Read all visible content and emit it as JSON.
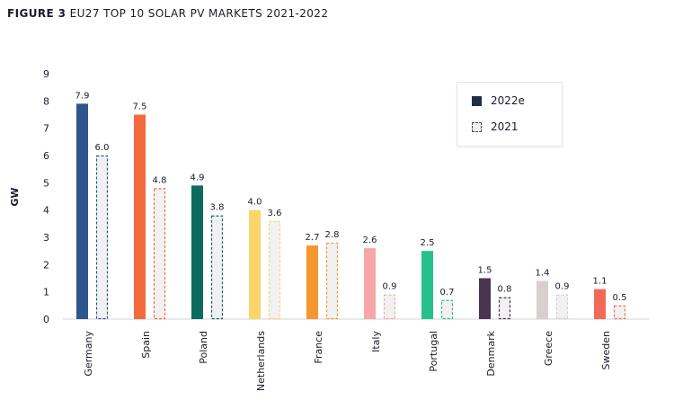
{
  "title": {
    "prefix": "FIGURE 3",
    "text": "EU27 TOP 10 SOLAR PV MARKETS 2021-2022"
  },
  "colors": {
    "Germany": "#2e558d",
    "Spain": "#f26a3d",
    "Poland": "#0d6b5e",
    "Netherlands": "#fbd56a",
    "France": "#f5972f",
    "Italy": "#f6a7a7",
    "Portugal": "#27c08a",
    "Denmark": "#4a3550",
    "Greece": "#d8cfcf",
    "Sweden": "#f26a55",
    "legend_2022e": "#1f2d4a"
  },
  "chart_data": {
    "type": "bar",
    "title": "EU27 TOP 10 SOLAR PV MARKETS 2021-2022",
    "xlabel": "",
    "ylabel": "GW",
    "ylim": [
      0,
      9
    ],
    "yticks": [
      0,
      1,
      2,
      3,
      4,
      5,
      6,
      7,
      8,
      9
    ],
    "categories": [
      "Germany",
      "Spain",
      "Poland",
      "Netherlands",
      "France",
      "Italy",
      "Portugal",
      "Denmark",
      "Greece",
      "Sweden"
    ],
    "series": [
      {
        "name": "2022e",
        "values": [
          7.9,
          7.5,
          4.9,
          4.0,
          2.7,
          2.6,
          2.5,
          1.5,
          1.4,
          1.1
        ],
        "labels": [
          "7.9",
          "7.5",
          "4.9",
          "4.0",
          "2.7",
          "2.6",
          "2.5",
          "1.5",
          "1.4",
          "1.1"
        ]
      },
      {
        "name": "2021",
        "values": [
          6.0,
          4.8,
          3.8,
          3.6,
          2.8,
          0.9,
          0.7,
          0.8,
          0.9,
          0.5
        ],
        "labels": [
          "6.0",
          "4.8",
          "3.8",
          "3.6",
          "2.8",
          "0.9",
          "0.7",
          "0.8",
          "0.9",
          "0.5"
        ]
      }
    ],
    "legend_position": "top-right"
  }
}
